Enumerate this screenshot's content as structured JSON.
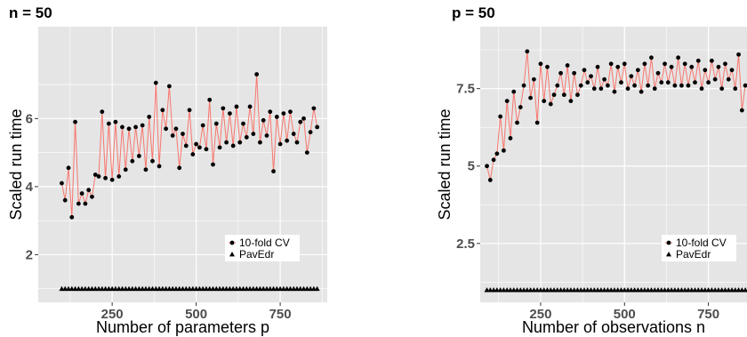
{
  "chart_data": [
    {
      "type": "line",
      "title": "n = 50",
      "xlabel": "Number of parameters p",
      "ylabel": "Scaled run time",
      "xticks": [
        250,
        500,
        750
      ],
      "yticks": [
        2,
        4,
        6
      ],
      "xlim": [
        30,
        890
      ],
      "ylim": [
        0.6,
        8.7
      ],
      "grid": true,
      "legend_position": "bottom-right",
      "x": [
        100,
        110,
        120,
        130,
        140,
        150,
        160,
        170,
        180,
        190,
        200,
        210,
        220,
        230,
        240,
        250,
        260,
        270,
        280,
        290,
        300,
        310,
        320,
        330,
        340,
        350,
        360,
        370,
        380,
        390,
        400,
        410,
        420,
        430,
        440,
        450,
        460,
        470,
        480,
        490,
        500,
        510,
        520,
        530,
        540,
        550,
        560,
        570,
        580,
        590,
        600,
        610,
        620,
        630,
        640,
        650,
        660,
        670,
        680,
        690,
        700,
        710,
        720,
        730,
        740,
        750,
        760,
        770,
        780,
        790,
        800,
        810,
        820,
        830,
        840,
        850,
        860
      ],
      "series": [
        {
          "name": "10-fold CV",
          "marker": "circle",
          "values": [
            4.1,
            3.6,
            4.55,
            3.1,
            5.9,
            3.5,
            3.8,
            3.5,
            3.9,
            3.7,
            4.35,
            4.3,
            6.2,
            4.25,
            5.85,
            4.2,
            5.9,
            4.3,
            5.75,
            4.5,
            5.7,
            4.75,
            5.75,
            4.9,
            5.8,
            4.5,
            6.05,
            4.75,
            7.05,
            4.6,
            6.25,
            5.7,
            6.95,
            5.5,
            5.7,
            4.55,
            5.55,
            5.2,
            6.25,
            4.95,
            5.25,
            5.15,
            5.8,
            5.1,
            6.55,
            4.65,
            5.85,
            5.15,
            6.3,
            5.3,
            6.15,
            5.2,
            6.35,
            5.3,
            5.85,
            5.45,
            6.35,
            5.55,
            7.3,
            5.3,
            5.95,
            5.5,
            6.2,
            4.45,
            6.05,
            5.25,
            6.15,
            5.35,
            6.2,
            5.55,
            5.3,
            5.9,
            6.0,
            5.0,
            5.6,
            6.3,
            5.75
          ]
        },
        {
          "name": "PavEdr",
          "marker": "triangle",
          "values": [
            1,
            1,
            1,
            1,
            1,
            1,
            1,
            1,
            1,
            1,
            1,
            1,
            1,
            1,
            1,
            1,
            1,
            1,
            1,
            1,
            1,
            1,
            1,
            1,
            1,
            1,
            1,
            1,
            1,
            1,
            1,
            1,
            1,
            1,
            1,
            1,
            1,
            1,
            1,
            1,
            1,
            1,
            1,
            1,
            1,
            1,
            1,
            1,
            1,
            1,
            1,
            1,
            1,
            1,
            1,
            1,
            1,
            1,
            1,
            1,
            1,
            1,
            1,
            1,
            1,
            1,
            1,
            1,
            1,
            1,
            1,
            1,
            1,
            1,
            1,
            1,
            1
          ]
        }
      ]
    },
    {
      "type": "line",
      "title": "p = 50",
      "xlabel": "Number of observations n",
      "ylabel": "Scaled run time",
      "xticks": [
        250,
        500,
        750
      ],
      "yticks": [
        2.5,
        5.0,
        7.5
      ],
      "xlim": [
        70,
        865
      ],
      "ylim": [
        0.6,
        9.5
      ],
      "grid": true,
      "legend_position": "bottom-right",
      "x": [
        90,
        100,
        110,
        120,
        130,
        140,
        150,
        160,
        170,
        180,
        190,
        200,
        210,
        220,
        230,
        240,
        250,
        260,
        270,
        280,
        290,
        300,
        310,
        320,
        330,
        340,
        350,
        360,
        370,
        380,
        390,
        400,
        410,
        420,
        430,
        440,
        450,
        460,
        470,
        480,
        490,
        500,
        510,
        520,
        530,
        540,
        550,
        560,
        570,
        580,
        590,
        600,
        610,
        620,
        630,
        640,
        650,
        660,
        670,
        680,
        690,
        700,
        710,
        720,
        730,
        740,
        750,
        760,
        770,
        780,
        790,
        800,
        810,
        820,
        830,
        840,
        850,
        860
      ],
      "series": [
        {
          "name": "10-fold CV",
          "marker": "circle",
          "values": [
            5.0,
            4.55,
            5.2,
            5.4,
            6.6,
            5.5,
            7.1,
            5.9,
            7.4,
            6.4,
            6.9,
            7.6,
            8.7,
            7.2,
            7.8,
            6.4,
            8.3,
            7.1,
            8.2,
            7.0,
            7.3,
            7.6,
            8.0,
            7.3,
            8.25,
            7.1,
            8.0,
            7.3,
            7.6,
            8.1,
            7.7,
            7.9,
            7.5,
            8.2,
            7.5,
            7.8,
            7.6,
            8.3,
            7.4,
            8.2,
            7.7,
            8.3,
            7.5,
            7.9,
            7.6,
            8.1,
            7.4,
            8.3,
            7.6,
            8.5,
            7.5,
            8.0,
            7.7,
            8.3,
            7.7,
            8.2,
            7.6,
            8.5,
            7.6,
            8.3,
            7.6,
            8.2,
            7.7,
            8.4,
            7.5,
            8.1,
            7.7,
            8.4,
            7.8,
            8.2,
            7.5,
            8.3,
            7.8,
            8.1,
            7.5,
            8.6,
            6.8,
            7.6
          ]
        },
        {
          "name": "PavEdr",
          "marker": "triangle",
          "values": [
            1,
            1,
            1,
            1,
            1,
            1,
            1,
            1,
            1,
            1,
            1,
            1,
            1,
            1,
            1,
            1,
            1,
            1,
            1,
            1,
            1,
            1,
            1,
            1,
            1,
            1,
            1,
            1,
            1,
            1,
            1,
            1,
            1,
            1,
            1,
            1,
            1,
            1,
            1,
            1,
            1,
            1,
            1,
            1,
            1,
            1,
            1,
            1,
            1,
            1,
            1,
            1,
            1,
            1,
            1,
            1,
            1,
            1,
            1,
            1,
            1,
            1,
            1,
            1,
            1,
            1,
            1,
            1,
            1,
            1,
            1,
            1,
            1,
            1,
            1,
            1,
            1,
            1
          ]
        }
      ]
    }
  ],
  "colors": {
    "panel_bg": "#e5e5e5",
    "grid": "#ffffff",
    "line": "#f8766d",
    "points": "#000000"
  }
}
